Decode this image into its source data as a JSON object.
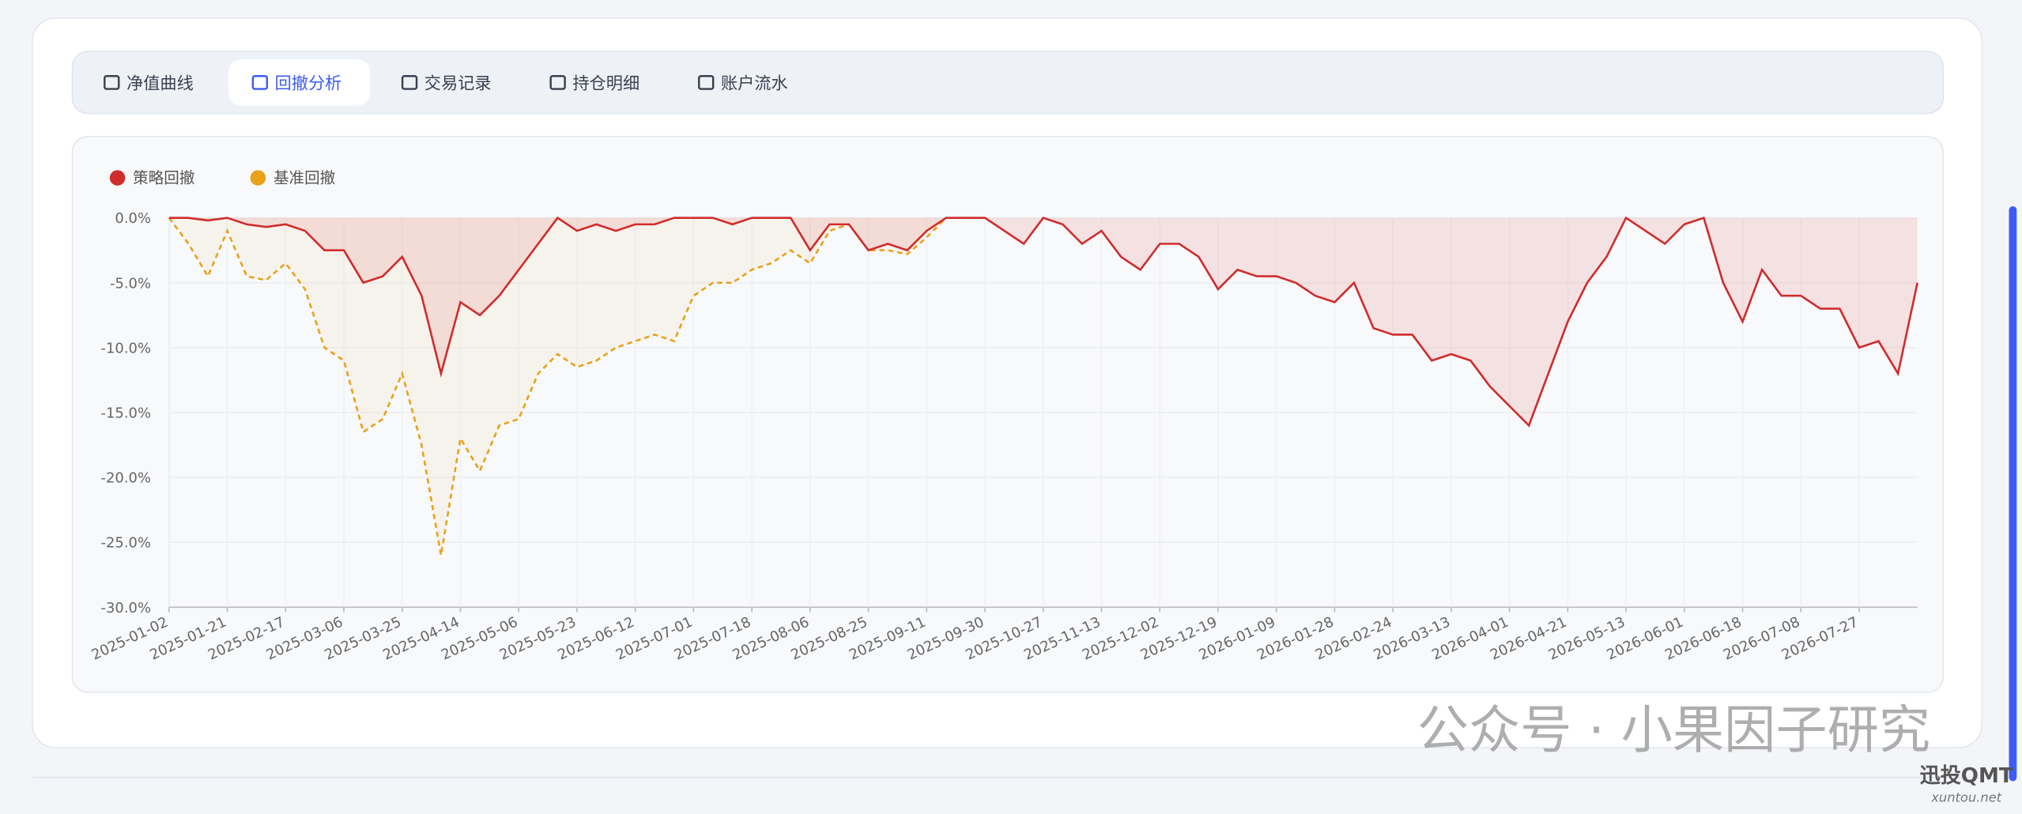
{
  "tabs": [
    "净值曲线",
    "回撤分析",
    "交易记录",
    "持仓明细",
    "账户流水"
  ],
  "active_tab": 1,
  "chart_data": {
    "type": "area-line",
    "categories": [
      "2025-01-02",
      null,
      null,
      "2025-01-21",
      null,
      null,
      "2025-02-17",
      null,
      null,
      "2025-03-06",
      null,
      null,
      "2025-03-25",
      null,
      null,
      "2025-04-14",
      null,
      null,
      "2025-05-06",
      null,
      null,
      "2025-05-23",
      null,
      null,
      "2025-06-12",
      null,
      null,
      "2025-07-01",
      null,
      null,
      "2025-07-18",
      null,
      null,
      "2025-08-06",
      null,
      null,
      "2025-08-25",
      null,
      null,
      "2025-09-11",
      null,
      null,
      "2025-09-30",
      null,
      null,
      "2025-10-27",
      null,
      null,
      "2025-11-13",
      null,
      null,
      "2025-12-02",
      null,
      null,
      "2025-12-19",
      null,
      null,
      "2026-01-09",
      null,
      null,
      "2026-01-28",
      null,
      null,
      "2026-02-24",
      null,
      null,
      "2026-03-13",
      null,
      null,
      "2026-04-01",
      null,
      null,
      "2026-04-21",
      null,
      null,
      "2026-05-13",
      null,
      null,
      "2026-06-01",
      null,
      null,
      "2026-06-18",
      null,
      null,
      "2026-07-08",
      null,
      null,
      "2026-07-27",
      null,
      null,
      null
    ],
    "series": [
      {
        "name": "策略回撤",
        "color": "#d02c2c",
        "fill": "rgba(220,60,50,0.12)",
        "dashed": false,
        "values": [
          0,
          0,
          -0.2,
          0,
          -0.5,
          -0.7,
          -0.5,
          -1,
          -2.5,
          -2.5,
          -5,
          -4.5,
          -3,
          -6,
          -12,
          -6.5,
          -7.5,
          -6,
          -4,
          -2,
          0,
          -1,
          -0.5,
          -1,
          -0.5,
          -0.5,
          0,
          0,
          0,
          -0.5,
          0,
          0,
          0,
          -2.5,
          -0.5,
          -0.5,
          -2.5,
          -2,
          -2.5,
          -1,
          0,
          0,
          0,
          -1,
          -2,
          0,
          -0.5,
          -2,
          -1,
          -3,
          -4,
          -2,
          -2,
          -3,
          -5.5,
          -4,
          -4.5,
          -4.5,
          -5,
          -6,
          -6.5,
          -5,
          -8.5,
          -9,
          -9,
          -11,
          -10.5,
          -11,
          -13,
          -14.5,
          -16,
          -12,
          -8,
          -5,
          -3,
          0,
          -1,
          -2,
          -0.5,
          0,
          -5,
          -8,
          -4,
          -6,
          -6,
          -7,
          -7,
          -10,
          -9.5,
          -12,
          -5
        ]
      },
      {
        "name": "基准回撤",
        "color": "#e9a21a",
        "fill": "rgba(235,200,120,0.10)",
        "dashed": true,
        "values": [
          0,
          -2,
          -4.5,
          -1,
          -4.5,
          -4.8,
          -3.5,
          -5.5,
          -10,
          -11,
          -16.5,
          -15.5,
          -12,
          -17.5,
          -26,
          -17,
          -19.5,
          -16,
          -15.5,
          -12,
          -10.5,
          -11.5,
          -11,
          -10,
          -9.5,
          -9,
          -9.5,
          -6,
          -5,
          -5,
          -4,
          -3.5,
          -2.5,
          -3.5,
          -1,
          -0.5,
          -2.5,
          -2.5,
          -2.8,
          -1.5,
          0,
          null,
          null,
          null,
          null,
          null,
          null,
          null,
          null,
          null,
          null,
          null,
          null,
          null,
          null,
          null,
          null,
          null,
          null,
          null,
          null,
          null,
          null,
          null,
          null,
          null,
          null,
          null,
          null,
          null,
          null,
          null,
          null,
          null,
          null,
          null,
          null,
          null,
          null,
          null,
          null,
          null,
          null,
          null,
          null,
          null,
          null,
          null,
          null,
          null,
          null
        ]
      }
    ],
    "ylim": [
      -30,
      0
    ],
    "yticks": [
      {
        "value": 0,
        "label": "0.0%"
      },
      {
        "value": -5,
        "label": "-5.0%"
      },
      {
        "value": -10,
        "label": "-10.0%"
      },
      {
        "value": -15,
        "label": "-15.0%"
      },
      {
        "value": -20,
        "label": "-20.0%"
      },
      {
        "value": -25,
        "label": "-25.0%"
      },
      {
        "value": -30,
        "label": "-30.0%"
      }
    ],
    "grid": true
  },
  "watermark": "公众号 · 小果因子研究",
  "badge": {
    "title": "迅投QMT",
    "url": "xuntou.net"
  }
}
